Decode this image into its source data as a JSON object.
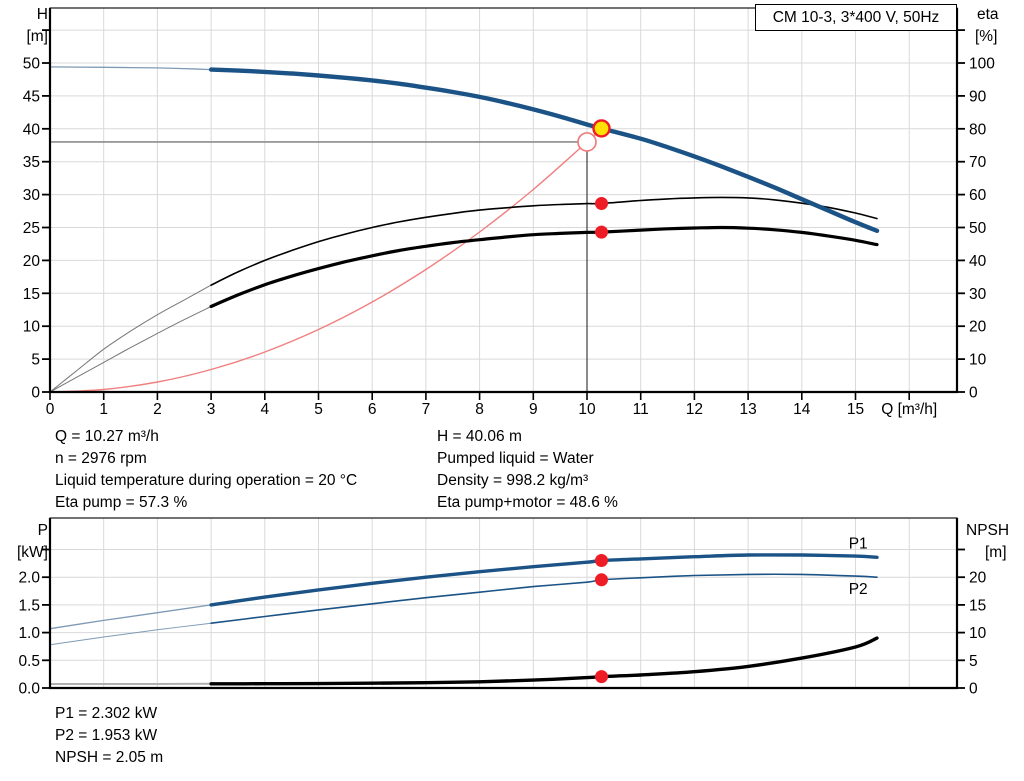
{
  "header": {
    "title_box": "CM 10-3, 3*400 V, 50Hz"
  },
  "info_top": {
    "left": [
      "Q = 10.27 m³/h",
      "n = 2976 rpm",
      "Liquid temperature during operation = 20 °C",
      "Eta pump = 57.3 %"
    ],
    "right": [
      "H = 40.06 m",
      "Pumped liquid = Water",
      "Density = 998.2 kg/m³",
      "Eta pump+motor = 48.6 %"
    ]
  },
  "info_bottom": [
    "P1 = 2.302 kW",
    "P2 = 1.953 kW",
    "NPSH = 2.05 m"
  ],
  "colors": {
    "curve_blue": "#1b5386",
    "curve_blue_thin": "#7f9ab5",
    "curve_black": "#000000",
    "curve_black_thin": "#777777",
    "npsh_thin": "#b0b0b0",
    "system_red": "#f08080",
    "marker_red": "#ee1c25",
    "marker_yellow": "#ffe000",
    "grid": "#d9d9d9",
    "crosshair_h": "#8c8c8c",
    "crosshair_v": "#3c3c3c",
    "axis": "#000000"
  },
  "chart_data": [
    {
      "type": "line",
      "title": "CM 10-3, 3*400 V, 50Hz",
      "x": {
        "label": "Q [m³/h]",
        "ticks": [
          0,
          1,
          2,
          3,
          4,
          5,
          6,
          7,
          8,
          9,
          10,
          11,
          12,
          13,
          14,
          15
        ],
        "labels": [
          "0",
          "1",
          "2",
          "3",
          "4",
          "5",
          "6",
          "7",
          "8",
          "9",
          "10",
          "11",
          "12",
          "13",
          "14",
          "15"
        ],
        "max": 16.9
      },
      "y_left": {
        "label": [
          "H",
          "[m]"
        ],
        "ticks": [
          0,
          5,
          10,
          15,
          20,
          25,
          30,
          35,
          40,
          45,
          50
        ],
        "labels": [
          "0",
          "5",
          "10",
          "15",
          "20",
          "25",
          "30",
          "35",
          "40",
          "45",
          "50"
        ],
        "unlabeled_tick": 55
      },
      "y_right": {
        "label": [
          "eta",
          "[%]"
        ],
        "ticks": [
          0,
          10,
          20,
          30,
          40,
          50,
          60,
          70,
          80,
          90,
          100
        ],
        "labels": [
          "0",
          "10",
          "20",
          "30",
          "40",
          "50",
          "60",
          "70",
          "80",
          "90",
          "100"
        ],
        "unlabeled_tick": 110
      },
      "series": [
        {
          "name": "system-curve",
          "axis": "left",
          "color": "#f08080",
          "width": 1.4,
          "split": null,
          "points": [
            [
              0,
              0
            ],
            [
              1,
              0.38
            ],
            [
              2,
              1.52
            ],
            [
              3,
              3.42
            ],
            [
              4,
              6.08
            ],
            [
              5,
              9.5
            ],
            [
              6,
              13.68
            ],
            [
              7,
              18.62
            ],
            [
              8,
              24.32
            ],
            [
              9,
              30.78
            ],
            [
              10,
              38.0
            ],
            [
              10.27,
              40.06
            ]
          ]
        },
        {
          "name": "eta-pump",
          "axis": "right",
          "color": "#000000",
          "width": 1.6,
          "split": 3,
          "thin_color": "#777777",
          "thin_width": 1.0,
          "points": [
            [
              0,
              0
            ],
            [
              0.5,
              6.5
            ],
            [
              1,
              13
            ],
            [
              1.5,
              18.5
            ],
            [
              2,
              23.5
            ],
            [
              2.5,
              28
            ],
            [
              3,
              32.5
            ],
            [
              3.5,
              36.5
            ],
            [
              4,
              40
            ],
            [
              4.5,
              43
            ],
            [
              5,
              45.7
            ],
            [
              5.5,
              48
            ],
            [
              6,
              50
            ],
            [
              6.5,
              51.7
            ],
            [
              7,
              53.1
            ],
            [
              7.5,
              54.3
            ],
            [
              8,
              55.3
            ],
            [
              8.5,
              56
            ],
            [
              9,
              56.6
            ],
            [
              9.5,
              57
            ],
            [
              10,
              57.25
            ],
            [
              10.27,
              57.3
            ],
            [
              11,
              58.2
            ],
            [
              11.5,
              58.7
            ],
            [
              12,
              59
            ],
            [
              12.5,
              59.15
            ],
            [
              13,
              59
            ],
            [
              13.5,
              58.4
            ],
            [
              14,
              57.4
            ],
            [
              14.5,
              56.1
            ],
            [
              15,
              54.4
            ],
            [
              15.4,
              52.7
            ]
          ]
        },
        {
          "name": "eta-pump-motor",
          "axis": "right",
          "color": "#000000",
          "width": 3.2,
          "split": 3,
          "thin_color": "#777777",
          "thin_width": 1.0,
          "points": [
            [
              0,
              0
            ],
            [
              0.5,
              4.5
            ],
            [
              1,
              9
            ],
            [
              1.5,
              13.5
            ],
            [
              2,
              17.8
            ],
            [
              2.5,
              22
            ],
            [
              3,
              26
            ],
            [
              3.5,
              29.5
            ],
            [
              4,
              32.6
            ],
            [
              4.5,
              35.2
            ],
            [
              5,
              37.5
            ],
            [
              5.5,
              39.6
            ],
            [
              6,
              41.4
            ],
            [
              6.5,
              43
            ],
            [
              7,
              44.3
            ],
            [
              7.5,
              45.4
            ],
            [
              8,
              46.3
            ],
            [
              8.5,
              47.1
            ],
            [
              9,
              47.8
            ],
            [
              9.5,
              48.2
            ],
            [
              10,
              48.5
            ],
            [
              10.27,
              48.6
            ],
            [
              11,
              49.2
            ],
            [
              11.5,
              49.6
            ],
            [
              12,
              49.85
            ],
            [
              12.5,
              50
            ],
            [
              13,
              49.8
            ],
            [
              13.5,
              49.3
            ],
            [
              14,
              48.5
            ],
            [
              14.5,
              47.4
            ],
            [
              15,
              46.1
            ],
            [
              15.4,
              44.8
            ]
          ]
        },
        {
          "name": "head",
          "axis": "left",
          "color": "#1b5386",
          "width": 4.4,
          "split": 3,
          "thin_color": "#7f9ab5",
          "thin_width": 1.3,
          "points": [
            [
              0,
              49.4
            ],
            [
              0.5,
              49.38
            ],
            [
              1,
              49.35
            ],
            [
              1.5,
              49.3
            ],
            [
              2,
              49.25
            ],
            [
              2.5,
              49.15
            ],
            [
              3,
              49.0
            ],
            [
              3.5,
              48.85
            ],
            [
              4,
              48.65
            ],
            [
              4.5,
              48.4
            ],
            [
              5,
              48.1
            ],
            [
              5.5,
              47.75
            ],
            [
              6,
              47.35
            ],
            [
              6.5,
              46.85
            ],
            [
              7,
              46.25
            ],
            [
              7.5,
              45.6
            ],
            [
              8,
              44.85
            ],
            [
              8.5,
              43.95
            ],
            [
              9,
              42.95
            ],
            [
              9.5,
              41.85
            ],
            [
              10,
              40.65
            ],
            [
              10.27,
              40.06
            ],
            [
              11,
              38.5
            ],
            [
              11.5,
              37.2
            ],
            [
              12,
              35.8
            ],
            [
              12.5,
              34.3
            ],
            [
              13,
              32.7
            ],
            [
              13.5,
              31.05
            ],
            [
              14,
              29.3
            ],
            [
              14.5,
              27.55
            ],
            [
              15,
              25.8
            ],
            [
              15.4,
              24.5
            ]
          ]
        }
      ],
      "duty_point": {
        "requested": {
          "q": 10,
          "h": 38
        },
        "actual": {
          "q": 10.27,
          "h": 40.06
        }
      },
      "markers": [
        {
          "name": "operating-point",
          "type": "yellow",
          "axis": "left",
          "q": 10.27,
          "v": 40.06
        },
        {
          "name": "eta-pump-point",
          "type": "red",
          "axis": "right",
          "q": 10.27,
          "v": 57.3
        },
        {
          "name": "eta-pump-motor-point",
          "type": "red",
          "axis": "right",
          "q": 10.27,
          "v": 48.6
        }
      ],
      "curve_labels": []
    },
    {
      "type": "line",
      "title": "",
      "x": {
        "label": "",
        "ticks": [],
        "labels": [],
        "max": 16.9
      },
      "y_left": {
        "label": [
          "P",
          "[kW]"
        ],
        "ticks": [
          0,
          0.5,
          1,
          1.5,
          2
        ],
        "labels": [
          "0.0",
          "0.5",
          "1.0",
          "1.5",
          "2.0"
        ],
        "unlabeled_tick": 2.5
      },
      "y_right": {
        "label": [
          "NPSH",
          "[m]"
        ],
        "ticks": [
          0,
          5,
          10,
          15,
          20
        ],
        "labels": [
          "0",
          "5",
          "10",
          "15",
          "20"
        ],
        "unlabeled_tick": 25
      },
      "series": [
        {
          "name": "p1",
          "axis": "left",
          "color": "#1b5386",
          "width": 3.4,
          "split": 3,
          "thin_color": "#7f9ab5",
          "thin_width": 1.3,
          "points": [
            [
              0,
              1.07
            ],
            [
              1,
              1.22
            ],
            [
              2,
              1.36
            ],
            [
              3,
              1.5
            ],
            [
              4,
              1.64
            ],
            [
              5,
              1.77
            ],
            [
              6,
              1.89
            ],
            [
              7,
              2.0
            ],
            [
              8,
              2.1
            ],
            [
              9,
              2.19
            ],
            [
              10,
              2.27
            ],
            [
              10.27,
              2.302
            ],
            [
              11,
              2.33
            ],
            [
              12,
              2.37
            ],
            [
              13,
              2.4
            ],
            [
              14,
              2.4
            ],
            [
              15,
              2.38
            ],
            [
              15.4,
              2.36
            ]
          ]
        },
        {
          "name": "p2",
          "axis": "left",
          "color": "#1b5386",
          "width": 1.6,
          "split": 3,
          "thin_color": "#7f9ab5",
          "thin_width": 1.0,
          "points": [
            [
              0,
              0.78
            ],
            [
              1,
              0.92
            ],
            [
              2,
              1.05
            ],
            [
              3,
              1.17
            ],
            [
              4,
              1.29
            ],
            [
              5,
              1.41
            ],
            [
              6,
              1.52
            ],
            [
              7,
              1.63
            ],
            [
              8,
              1.73
            ],
            [
              9,
              1.83
            ],
            [
              10,
              1.91
            ],
            [
              10.27,
              1.953
            ],
            [
              11,
              1.99
            ],
            [
              12,
              2.03
            ],
            [
              13,
              2.05
            ],
            [
              14,
              2.05
            ],
            [
              15,
              2.02
            ],
            [
              15.4,
              2.0
            ]
          ]
        },
        {
          "name": "npsh",
          "axis": "right",
          "color": "#000000",
          "width": 3.4,
          "split": 3,
          "thin_color": "#b0b0b0",
          "thin_width": 2.0,
          "points": [
            [
              0,
              0.72
            ],
            [
              1,
              0.72
            ],
            [
              2,
              0.73
            ],
            [
              3,
              0.75
            ],
            [
              4,
              0.77
            ],
            [
              5,
              0.8
            ],
            [
              6,
              0.86
            ],
            [
              7,
              0.95
            ],
            [
              8,
              1.12
            ],
            [
              9,
              1.42
            ],
            [
              10,
              1.88
            ],
            [
              10.27,
              2.05
            ],
            [
              11,
              2.35
            ],
            [
              12,
              2.95
            ],
            [
              13,
              3.9
            ],
            [
              14,
              5.4
            ],
            [
              15,
              7.4
            ],
            [
              15.4,
              9.0
            ]
          ]
        }
      ],
      "duty_point": null,
      "markers": [
        {
          "name": "p1-point",
          "type": "red",
          "axis": "left",
          "q": 10.27,
          "v": 2.302
        },
        {
          "name": "p2-point",
          "type": "red",
          "axis": "left",
          "q": 10.27,
          "v": 1.953
        },
        {
          "name": "npsh-point",
          "type": "red",
          "axis": "right",
          "q": 10.27,
          "v": 2.05
        }
      ],
      "curve_labels": [
        {
          "text": "P1",
          "q": 15.05,
          "axis": "left",
          "v": 2.52
        },
        {
          "text": "P2",
          "q": 15.05,
          "axis": "left",
          "v": 1.7
        }
      ]
    }
  ]
}
